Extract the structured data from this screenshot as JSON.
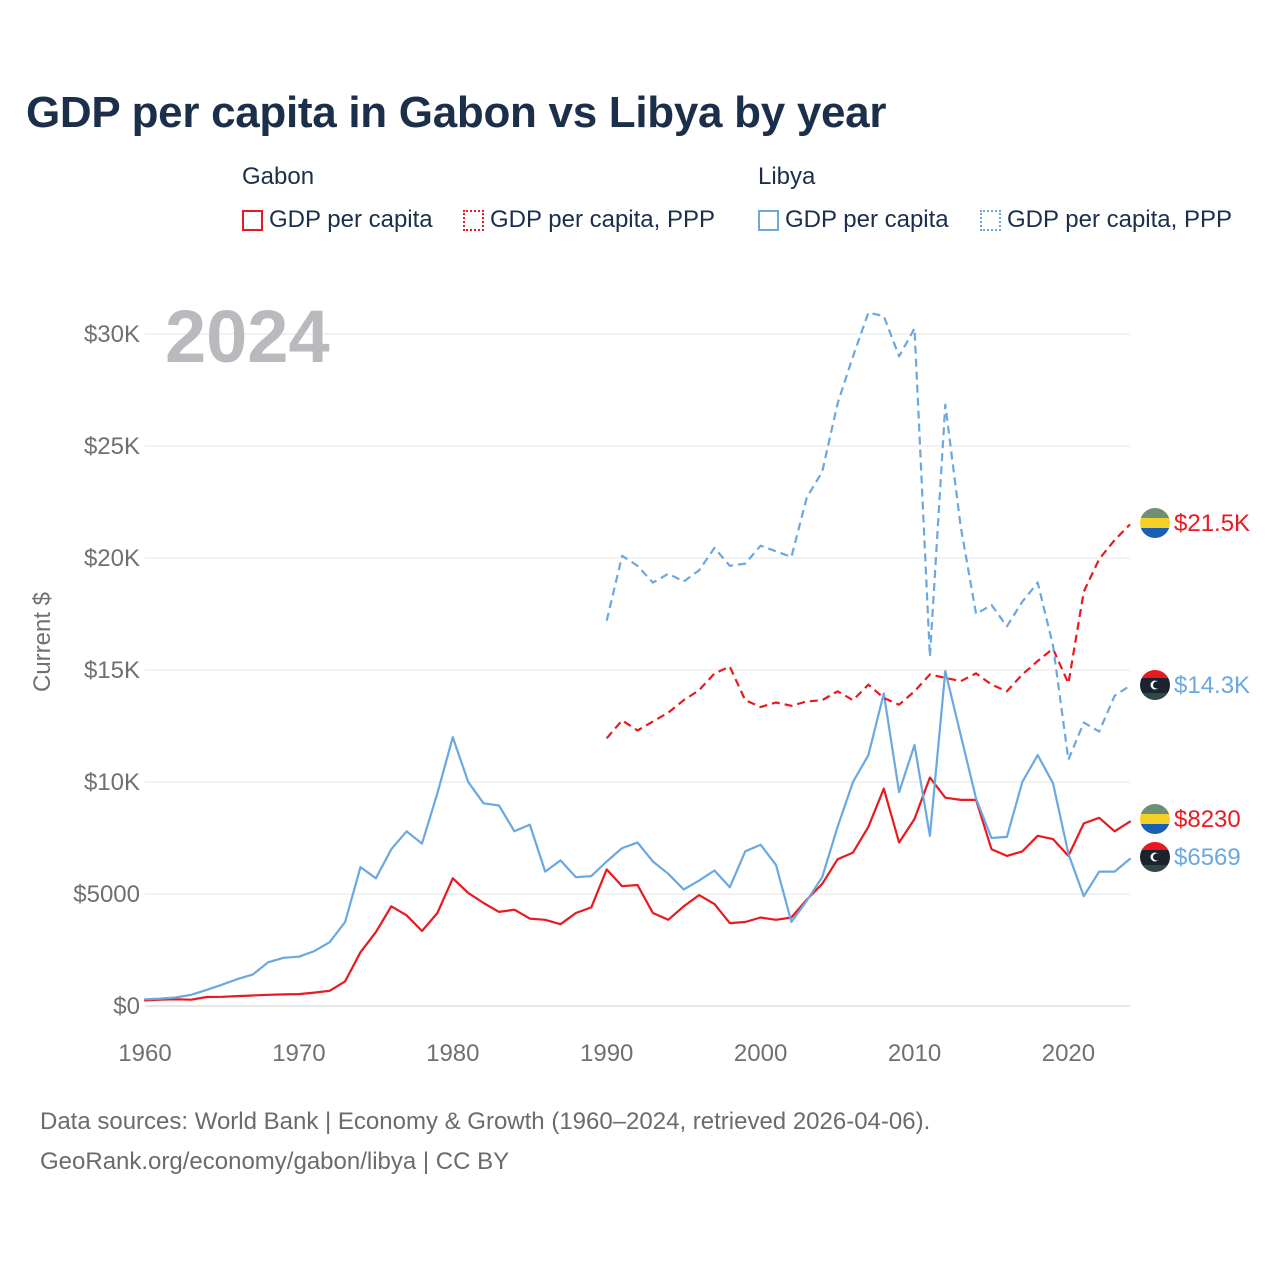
{
  "chart_data": {
    "type": "line",
    "title": "GDP per capita in Gabon vs Libya by year",
    "year_label": "2024",
    "ylabel": "Current $",
    "xlabel": "",
    "xlim": [
      1960,
      2024
    ],
    "ylim": [
      0,
      30000
    ],
    "x_ticks": [
      1960,
      1970,
      1980,
      1990,
      2000,
      2010,
      2020
    ],
    "x_tick_labels": [
      "1960",
      "1970",
      "1980",
      "1990",
      "2000",
      "2010",
      "2020"
    ],
    "y_ticks": [
      0,
      5000,
      10000,
      15000,
      20000,
      25000,
      30000
    ],
    "y_tick_labels": [
      "$0",
      "$5000",
      "$10K",
      "$15K",
      "$20K",
      "$25K",
      "$30K"
    ],
    "legend": {
      "groups": [
        {
          "name": "Gabon",
          "items": [
            "GDP per capita",
            "GDP per capita, PPP"
          ]
        },
        {
          "name": "Libya",
          "items": [
            "GDP per capita",
            "GDP per capita, PPP"
          ]
        }
      ]
    },
    "series": [
      {
        "name": "Gabon GDP per capita",
        "country": "Gabon",
        "style": "solid",
        "color": "#e8191f",
        "start_year": 1960,
        "values": [
          250,
          280,
          300,
          280,
          400,
          410,
          440,
          470,
          500,
          520,
          530,
          600,
          680,
          1100,
          2400,
          3300,
          4450,
          4050,
          3350,
          4150,
          5700,
          5050,
          4600,
          4200,
          4300,
          3900,
          3850,
          3650,
          4150,
          4400,
          6100,
          5350,
          5400,
          4150,
          3850,
          4450,
          4950,
          4550,
          3700,
          3750,
          3950,
          3850,
          3950,
          4750,
          5450,
          6550,
          6850,
          8000,
          9700,
          7300,
          8350,
          10200,
          9300,
          9200,
          9200,
          7000,
          6700,
          6900,
          7600,
          7450,
          6700,
          8150,
          8400,
          7800,
          8230
        ],
        "end_label": "$8230"
      },
      {
        "name": "Gabon GDP per capita, PPP",
        "country": "Gabon",
        "style": "dashed",
        "color": "#e8191f",
        "start_year": 1990,
        "values": [
          11950,
          12750,
          12300,
          12700,
          13100,
          13650,
          14100,
          14850,
          15150,
          13650,
          13350,
          13550,
          13400,
          13600,
          13650,
          14050,
          13650,
          14350,
          13750,
          13450,
          14050,
          14800,
          14650,
          14500,
          14850,
          14350,
          14050,
          14800,
          15400,
          15950,
          14400,
          18500,
          19950,
          20800,
          21500
        ],
        "end_label": "$21.5K"
      },
      {
        "name": "Libya GDP per capita",
        "country": "Libya",
        "style": "solid",
        "color": "#6aa8e0",
        "start_year": 1960,
        "values": [
          300,
          330,
          380,
          500,
          720,
          950,
          1200,
          1400,
          1950,
          2150,
          2200,
          2450,
          2850,
          3750,
          6200,
          5700,
          7000,
          7800,
          7250,
          9500,
          12000,
          10000,
          9050,
          8950,
          7800,
          8100,
          6000,
          6500,
          5750,
          5800,
          6450,
          7050,
          7300,
          6450,
          5900,
          5200,
          5600,
          6050,
          5300,
          6900,
          7200,
          6300,
          3750,
          4700,
          5750,
          8000,
          10000,
          11200,
          13950,
          9550,
          11650,
          7600,
          14950,
          12100,
          9250,
          7500,
          7550,
          10000,
          11200,
          9950,
          6800,
          4900,
          6000,
          6000,
          6569
        ],
        "end_label": "$6569"
      },
      {
        "name": "Libya GDP per capita, PPP",
        "country": "Libya",
        "style": "dashed",
        "color": "#6aa8e0",
        "start_year": 1990,
        "values": [
          17200,
          20100,
          19650,
          18900,
          19300,
          18950,
          19450,
          20450,
          19650,
          19750,
          20550,
          20300,
          20050,
          22700,
          23850,
          26900,
          29000,
          30950,
          30800,
          29000,
          30250,
          15600,
          26850,
          21400,
          17500,
          17900,
          16950,
          18050,
          18900,
          16100,
          11000,
          12650,
          12250,
          13850,
          14300
        ],
        "end_label": "$14.3K"
      }
    ]
  },
  "footer": {
    "source_line": "Data sources: World Bank | Economy & Growth (1960–2024, retrieved 2026-04-06).",
    "credit_line": "GeoRank.org/economy/gabon/libya | CC BY"
  }
}
